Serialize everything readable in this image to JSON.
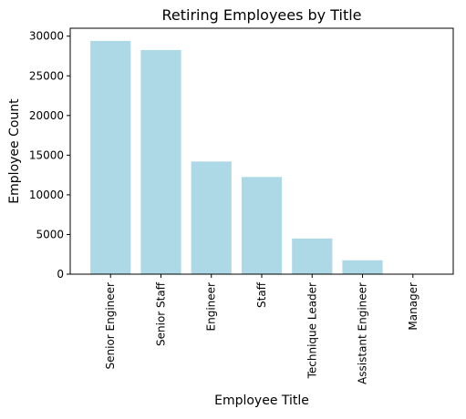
{
  "chart_data": {
    "type": "bar",
    "title": "Retiring Employees by Title",
    "xlabel": "Employee Title",
    "ylabel": "Employee Count",
    "categories": [
      "Senior Engineer",
      "Senior Staff",
      "Engineer",
      "Staff",
      "Technique Leader",
      "Assistant Engineer",
      "Manager"
    ],
    "values": [
      29400,
      28250,
      14200,
      12250,
      4500,
      1750,
      2
    ],
    "ylim": [
      0,
      31000
    ],
    "yticks": [
      0,
      5000,
      10000,
      15000,
      20000,
      25000,
      30000
    ],
    "grid": false,
    "bar_color": "#add8e6"
  }
}
